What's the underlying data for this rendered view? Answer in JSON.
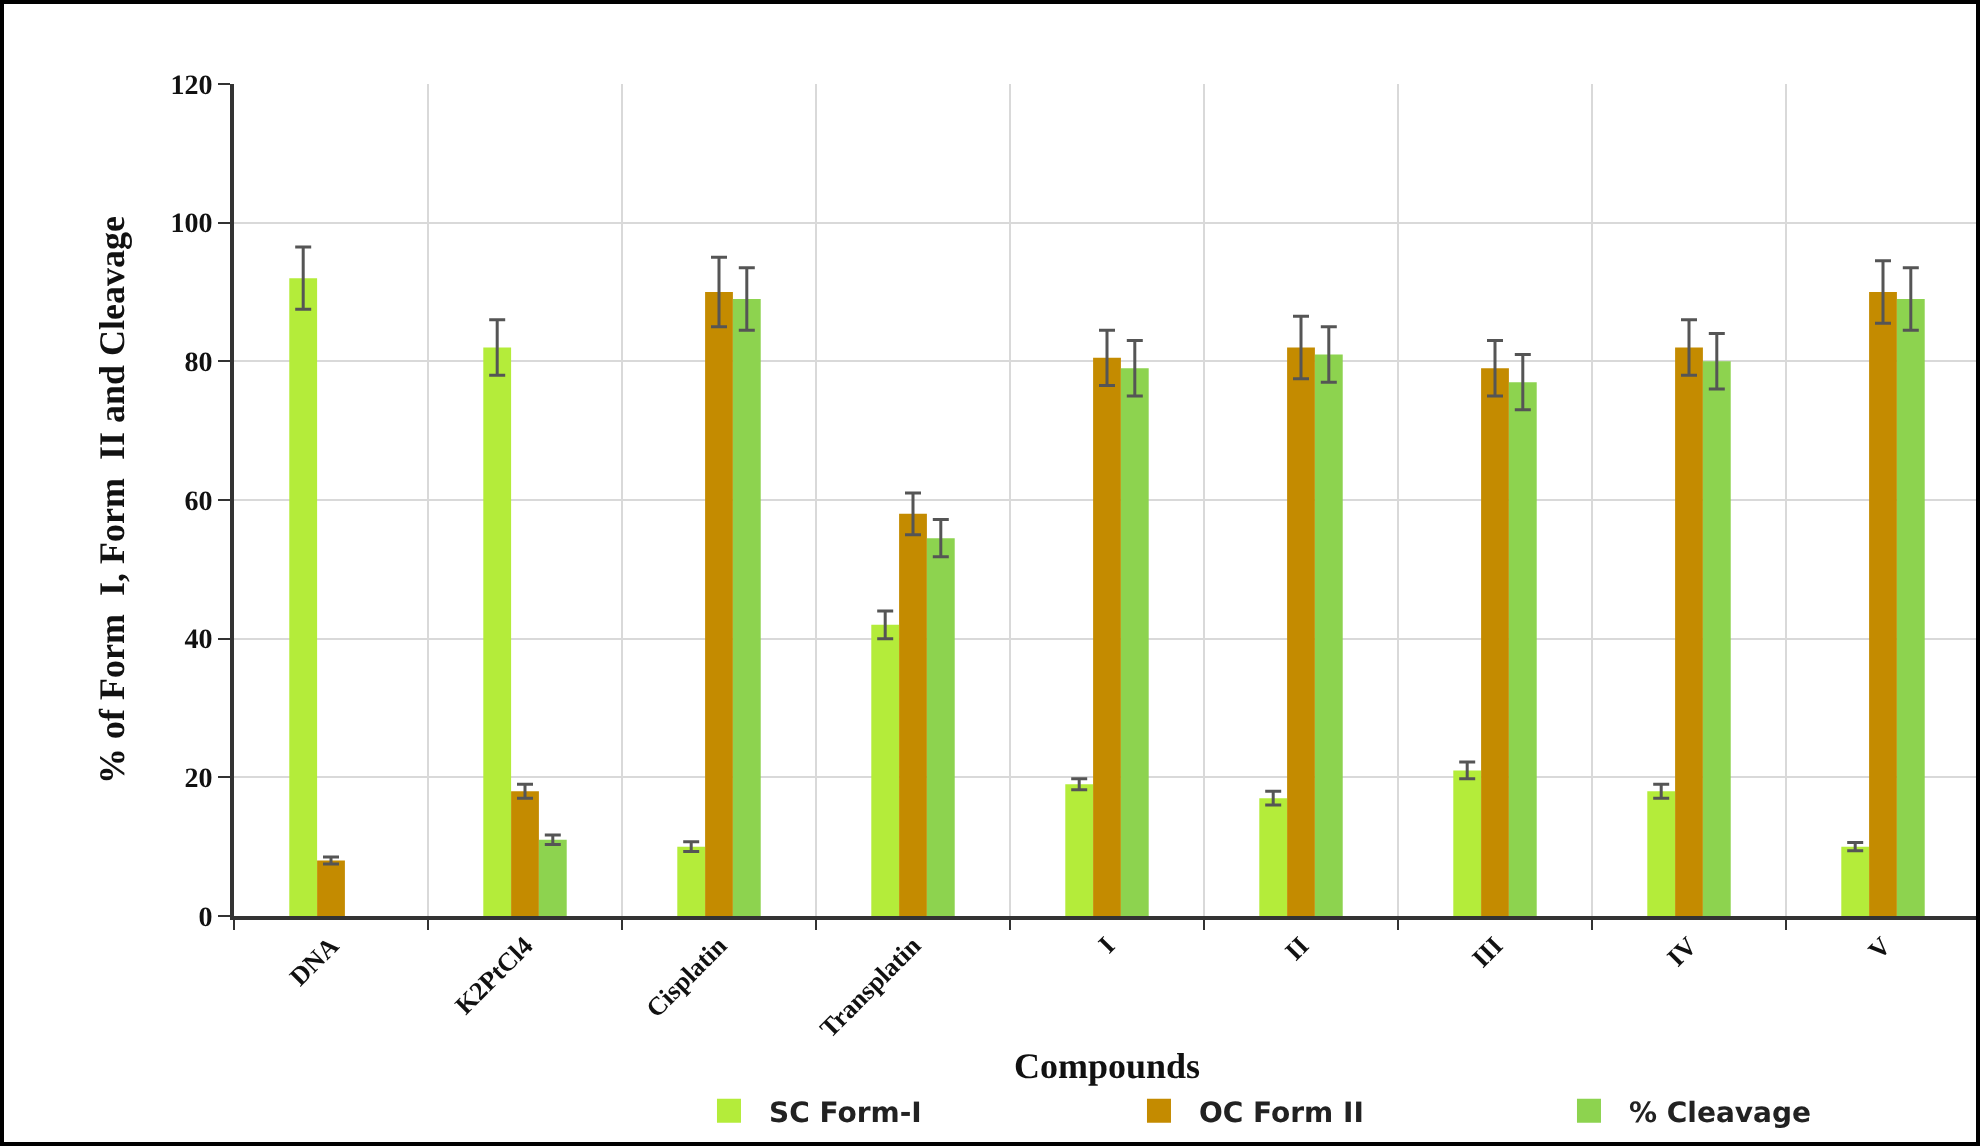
{
  "chart_data": {
    "type": "bar",
    "xlabel": "Compounds",
    "ylabel": "% of Form  I, Form  II and Cleavage",
    "categories": [
      "DNA",
      "K2PtCl4",
      "Cisplatin",
      "Transplatin",
      "I",
      "II",
      "III",
      "IV",
      "V"
    ],
    "series": [
      {
        "name": "SC Form-I",
        "color": "#b4ec3a",
        "values": [
          92,
          82,
          10,
          42,
          19,
          17,
          21,
          18,
          10
        ],
        "errors": [
          4.5,
          4,
          0.7,
          2,
          0.8,
          1,
          1.2,
          1,
          0.6
        ]
      },
      {
        "name": "OC Form II",
        "color": "#c48b00",
        "values": [
          8,
          18,
          90,
          58,
          80.5,
          82,
          79,
          82,
          90
        ],
        "errors": [
          0.5,
          1,
          5,
          3,
          4,
          4.5,
          4,
          4,
          4.5
        ]
      },
      {
        "name": "% Cleavage",
        "color": "#8dd34f",
        "values": [
          null,
          11,
          89,
          54.5,
          79,
          81,
          77,
          80,
          89
        ],
        "errors": [
          null,
          0.7,
          4.5,
          2.7,
          4,
          4,
          4,
          4,
          4.5
        ]
      }
    ],
    "ylim": [
      0,
      120
    ],
    "yticks": [
      0,
      20,
      40,
      60,
      80,
      100,
      120
    ],
    "grid": true,
    "legend": "bottom"
  }
}
